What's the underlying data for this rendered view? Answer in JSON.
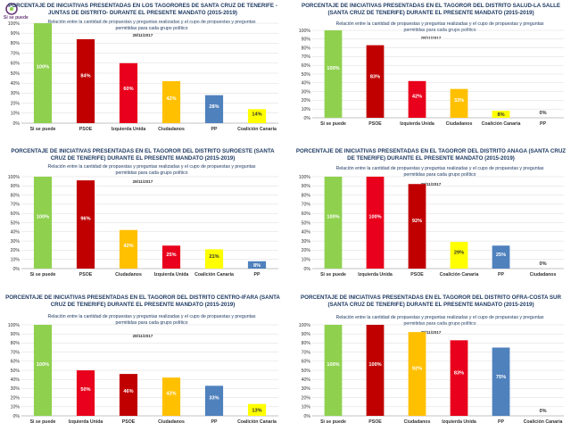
{
  "logo": {
    "text": "Sí se puede",
    "color": "#6a3b7b"
  },
  "colors": {
    "Si se puede": "#8fd14f",
    "PSOE": "#c00000",
    "Izquierda Unida": "#e8001c",
    "Ciudadanos": "#ffc000",
    "PP": "#4f81bd",
    "Coalición Canaria": "#ffff00"
  },
  "chart_data": [
    {
      "type": "bar",
      "title": "PORCENTAJE DE INICIATIVAS PRESENTADAS EN LOS TAGORORES DE SANTA CRUZ DE TENERIFE -JUNTAS DE DISTRITO- DURANTE EL PRESENTE MANDATO (2015-2019)",
      "subtitle": "Relación entre la cantidad de propuestas y preguntas realizadas y el cupo de propuestas y preguntas permitidas para cada grupo político",
      "date": "28/11/2017",
      "categories": [
        "Si se puede",
        "PSOE",
        "Izquierda Unida",
        "Ciudadanos",
        "PP",
        "Coalición Canaria"
      ],
      "values": [
        100,
        84,
        60,
        42,
        28,
        14
      ],
      "labels": [
        "100%",
        "84%",
        "60%",
        "42%",
        "28%",
        "14%"
      ],
      "ylim": [
        0,
        100
      ],
      "yticks": [
        "0%",
        "10%",
        "20%",
        "30%",
        "40%",
        "50%",
        "60%",
        "70%",
        "80%",
        "90%",
        "100%"
      ]
    },
    {
      "type": "bar",
      "title": "PORCENTAJE DE INICIATIVAS PRESENTADAS EN EL TAGOROR DEL DISTRITO SALUD-LA SALLE (SANTA CRUZ DE TENERIFE) DURANTE EL PRESENTE MANDATO (2015-2019)",
      "subtitle": "Relación entre la cantidad de propuestas y preguntas realizadas y el cupo de propuestas y preguntas permitidas para cada grupo político",
      "date": "28/11/2017",
      "categories": [
        "Si se puede",
        "PSOE",
        "Izquierda Unida",
        "Ciudadanos",
        "Coalición Canaria",
        "PP"
      ],
      "values": [
        100,
        83,
        42,
        33,
        8,
        0
      ],
      "labels": [
        "100%",
        "83%",
        "42%",
        "33%",
        "8%",
        "0%"
      ],
      "ylim": [
        0,
        100
      ],
      "yticks": [
        "0%",
        "10%",
        "20%",
        "30%",
        "40%",
        "50%",
        "60%",
        "70%",
        "80%",
        "90%",
        "100%"
      ]
    },
    {
      "type": "bar",
      "title": "PORCENTAJE DE INICIATIVAS PRESENTADAS EN EL TAGOROR DEL DISTRITO SUROESTE (SANTA CRUZ DE TENERIFE) DURANTE EL PRESENTE MANDATO (2015-2019)",
      "subtitle": "Relación entre la cantidad de propuestas y preguntas realizadas y el cupo de propuestas y preguntas permitidas para cada grupo político",
      "date": "28/11/2017",
      "categories": [
        "Si se puede",
        "PSOE",
        "Ciudadanos",
        "Izquierda Unida",
        "Coalición Canaria",
        "PP"
      ],
      "values": [
        100,
        96,
        42,
        25,
        21,
        8
      ],
      "labels": [
        "100%",
        "96%",
        "42%",
        "25%",
        "21%",
        "8%"
      ],
      "ylim": [
        0,
        100
      ],
      "yticks": [
        "0%",
        "10%",
        "20%",
        "30%",
        "40%",
        "50%",
        "60%",
        "70%",
        "80%",
        "90%",
        "100%"
      ]
    },
    {
      "type": "bar",
      "title": "PORCENTAJE DE INICIATIVAS PRESENTADAS EN EL TAGOROR DEL DISTRITO ANAGA (SANTA CRUZ DE TENERIFE) DURANTE EL PRESENTE MANDATO (2015-2019)",
      "subtitle": "Relación entre la cantidad de propuestas y preguntas realizadas y el cupo de propuestas y preguntas permitidas para cada grupo político",
      "date": "28/11/2017",
      "categories": [
        "Si se puede",
        "Izquierda Unida",
        "PSOE",
        "Coalición Canaria",
        "PP",
        "Ciudadanos"
      ],
      "values": [
        100,
        100,
        92,
        29,
        25,
        0
      ],
      "labels": [
        "100%",
        "100%",
        "92%",
        "29%",
        "25%",
        "0%"
      ],
      "ylim": [
        0,
        100
      ],
      "yticks": [
        "0%",
        "10%",
        "20%",
        "30%",
        "40%",
        "50%",
        "60%",
        "70%",
        "80%",
        "90%",
        "100%"
      ]
    },
    {
      "type": "bar",
      "title": "PORCENTAJE DE INICIATIVAS PRESENTADAS EN EL TAGOROR DEL DISTRITO CENTRO-IFARA (SANTA CRUZ DE TENERIFE) DURANTE EL PRESENTE MANDATO (2015-2019)",
      "subtitle": "Relación entre la cantidad de propuestas y preguntas realizadas y el cupo de propuestas y preguntas permitidas para cada grupo político",
      "date": "28/11/2017",
      "categories": [
        "Si se puede",
        "Izquierda Unida",
        "PSOE",
        "Ciudadanos",
        "PP",
        "Coalición Canaria"
      ],
      "values": [
        100,
        50,
        46,
        42,
        33,
        13
      ],
      "labels": [
        "100%",
        "50%",
        "46%",
        "42%",
        "33%",
        "13%"
      ],
      "ylim": [
        0,
        100
      ],
      "yticks": [
        "0%",
        "10%",
        "20%",
        "30%",
        "40%",
        "50%",
        "60%",
        "70%",
        "80%",
        "90%",
        "100%"
      ]
    },
    {
      "type": "bar",
      "title": "PORCENTAJE DE INICIATIVAS PRESENTADAS EN EL TAGOROR DEL DISTRITO OFRA-COSTA SUR (SANTA CRUZ DE TENERIFE) DURANTE EL PRESENTE MANDATO (2015-2019)",
      "subtitle": "Relación entre la cantidad de propuestas y preguntas realizadas y el cupo de propuestas y preguntas permitidas para cada grupo político",
      "date": "28/11/2017",
      "categories": [
        "Si se puede",
        "PSOE",
        "Ciudadanos",
        "Izquierda Unida",
        "PP",
        "Coalición Canaria"
      ],
      "values": [
        100,
        100,
        92,
        83,
        75,
        0
      ],
      "labels": [
        "100%",
        "100%",
        "92%",
        "83%",
        "75%",
        "0%"
      ],
      "ylim": [
        0,
        100
      ],
      "yticks": [
        "0%",
        "10%",
        "20%",
        "30%",
        "40%",
        "50%",
        "60%",
        "70%",
        "80%",
        "90%",
        "100%"
      ]
    }
  ]
}
